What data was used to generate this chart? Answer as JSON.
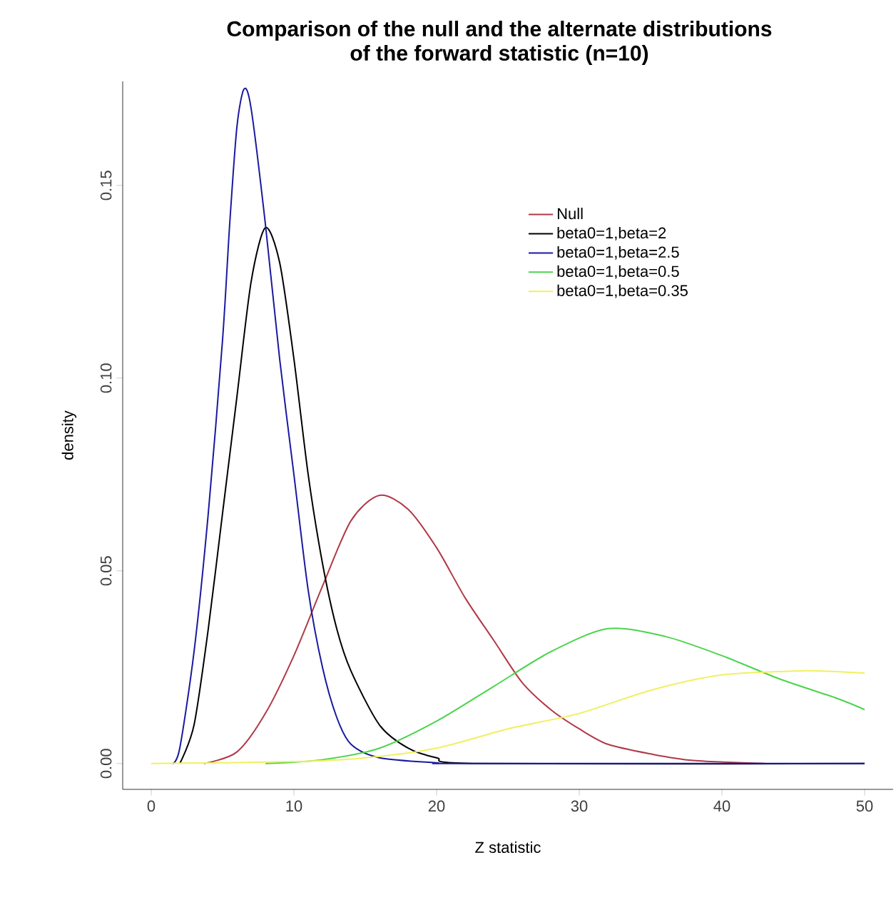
{
  "chart_data": {
    "type": "line",
    "title": "Comparison of the null and the alternate distributions\nof the forward statistic (n=10)",
    "xlabel": "Z statistic",
    "ylabel": "density",
    "xlim": [
      -2,
      52
    ],
    "ylim": [
      -0.0067,
      0.177
    ],
    "xticks": [
      0,
      10,
      20,
      30,
      40,
      50
    ],
    "yticks": [
      {
        "value": 0,
        "label": "0.00"
      },
      0.05,
      {
        "value": 0.1,
        "label": "0.10"
      },
      0.15
    ],
    "legend": "top right",
    "grid": false,
    "marker": "none",
    "line_style": "solid",
    "series": [
      {
        "name": "Null",
        "color": "#b03a48",
        "x": [
          3.7,
          6,
          8,
          10,
          12,
          14,
          16,
          18,
          20,
          22,
          24,
          26,
          28,
          30,
          32,
          35,
          38,
          43
        ],
        "values": [
          0,
          0.003,
          0.013,
          0.028,
          0.046,
          0.063,
          0.0696,
          0.066,
          0.056,
          0.043,
          0.032,
          0.021,
          0.014,
          0.009,
          0.005,
          0.0025,
          0.0008,
          0
        ]
      },
      {
        "name": "beta0=1,beta=2",
        "color": "#000000",
        "x": [
          2,
          3,
          4,
          5,
          6,
          7,
          8,
          9,
          10,
          11,
          12,
          13,
          14,
          16,
          18,
          20,
          23,
          50
        ],
        "values": [
          0,
          0.01,
          0.035,
          0.065,
          0.095,
          0.125,
          0.139,
          0.13,
          0.105,
          0.075,
          0.052,
          0.035,
          0.024,
          0.01,
          0.004,
          0.0015,
          0,
          0
        ]
      },
      {
        "name": "beta0=1,beta=2.5",
        "color": "#1a1aa0",
        "x": [
          1.5,
          2,
          3,
          4,
          5,
          5.5,
          6,
          6.5,
          7,
          8,
          9,
          10,
          11,
          12,
          13,
          14,
          16,
          20,
          22,
          50
        ],
        "values": [
          0,
          0.004,
          0.029,
          0.065,
          0.11,
          0.14,
          0.165,
          0.175,
          0.17,
          0.14,
          0.105,
          0.075,
          0.045,
          0.025,
          0.012,
          0.005,
          0.0015,
          0.0002,
          0,
          0
        ]
      },
      {
        "name": "beta0=1,beta=0.5",
        "color": "#4cd44c",
        "x": [
          8,
          12,
          16,
          20,
          24,
          28,
          32,
          36,
          40,
          44,
          48,
          50
        ],
        "values": [
          0,
          0.001,
          0.004,
          0.011,
          0.02,
          0.029,
          0.035,
          0.033,
          0.028,
          0.022,
          0.017,
          0.014
        ]
      },
      {
        "name": "beta0=1,beta=0.35",
        "color": "#f0f060",
        "x": [
          0,
          10,
          15,
          20,
          25,
          30,
          35,
          40,
          45,
          47,
          50
        ],
        "values": [
          0,
          0.0005,
          0.0015,
          0.004,
          0.009,
          0.013,
          0.019,
          0.023,
          0.024,
          0.024,
          0.0235
        ]
      }
    ]
  }
}
